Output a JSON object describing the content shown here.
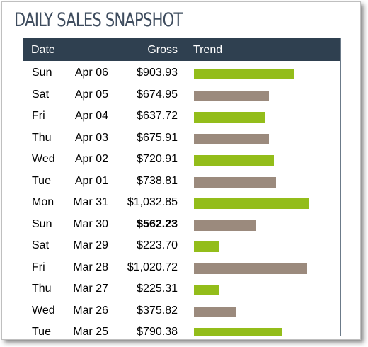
{
  "title": "DAILY SALES SNAPSHOT",
  "headers": {
    "date": "Date",
    "gross": "Gross",
    "trend": "Trend"
  },
  "colors": {
    "header_bg": "#2f4050",
    "bar_green": "#93bd1a",
    "bar_taupe": "#9b8a7d"
  },
  "chart_data": {
    "type": "bar",
    "categories": [
      "Sun Apr 06",
      "Sat Apr 05",
      "Fri Apr 04",
      "Thu Apr 03",
      "Wed Apr 02",
      "Tue Apr 01",
      "Mon Mar 31",
      "Sun Mar 30",
      "Sat Mar 29",
      "Fri Mar 28",
      "Thu Mar 27",
      "Wed Mar 26",
      "Tue Mar 25"
    ],
    "values": [
      903.93,
      674.95,
      637.72,
      675.91,
      720.91,
      738.81,
      1032.85,
      562.23,
      223.7,
      1020.72,
      225.31,
      375.82,
      790.38
    ],
    "bar_colors": [
      "green",
      "taupe",
      "green",
      "taupe",
      "green",
      "taupe",
      "green",
      "taupe",
      "green",
      "taupe",
      "green",
      "taupe",
      "green"
    ],
    "scale_max": 1100
  },
  "rows": [
    {
      "day": "Sun",
      "date": "Apr 06",
      "gross": "$903.93",
      "bold": false
    },
    {
      "day": "Sat",
      "date": "Apr 05",
      "gross": "$674.95",
      "bold": false
    },
    {
      "day": "Fri",
      "date": "Apr 04",
      "gross": "$637.72",
      "bold": false
    },
    {
      "day": "Thu",
      "date": "Apr 03",
      "gross": "$675.91",
      "bold": false
    },
    {
      "day": "Wed",
      "date": "Apr 02",
      "gross": "$720.91",
      "bold": false
    },
    {
      "day": "Tue",
      "date": "Apr 01",
      "gross": "$738.81",
      "bold": false
    },
    {
      "day": "Mon",
      "date": "Mar 31",
      "gross": "$1,032.85",
      "bold": false
    },
    {
      "day": "Sun",
      "date": "Mar 30",
      "gross": "$562.23",
      "bold": true
    },
    {
      "day": "Sat",
      "date": "Mar 29",
      "gross": "$223.70",
      "bold": false
    },
    {
      "day": "Fri",
      "date": "Mar 28",
      "gross": "$1,020.72",
      "bold": false
    },
    {
      "day": "Thu",
      "date": "Mar 27",
      "gross": "$225.31",
      "bold": false
    },
    {
      "day": "Wed",
      "date": "Mar 26",
      "gross": "$375.82",
      "bold": false
    },
    {
      "day": "Tue",
      "date": "Mar 25",
      "gross": "$790.38",
      "bold": false
    }
  ]
}
